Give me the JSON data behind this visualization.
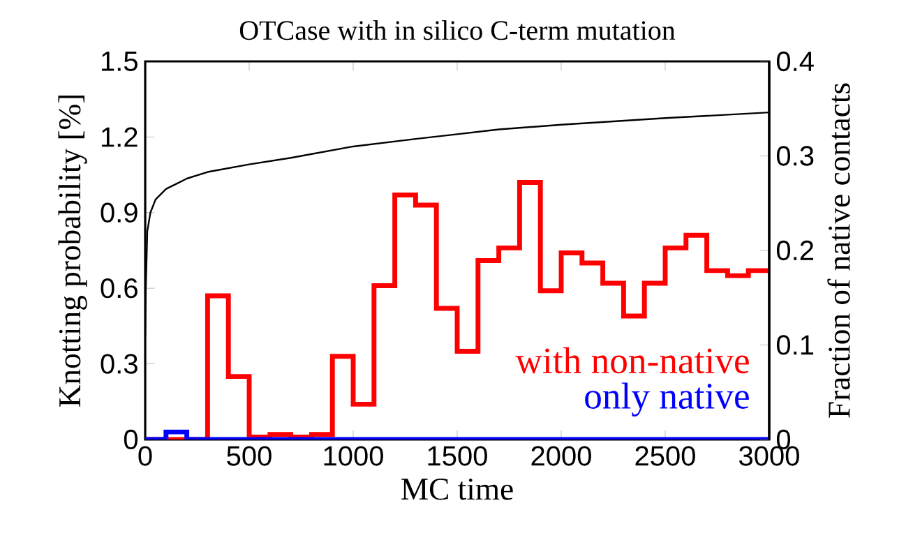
{
  "chart_data": {
    "type": "histogram",
    "title": "OTCase with in silico C-term mutation",
    "xlabel": "MC time",
    "ylabel": "Knotting probability [%]",
    "y2label": "Fraction of native contacts",
    "bins": [
      0,
      100,
      200,
      300,
      400,
      500,
      600,
      700,
      800,
      900,
      1000,
      1100,
      1200,
      1300,
      1400,
      1500,
      1600,
      1700,
      1800,
      1900,
      2000,
      2100,
      2200,
      2300,
      2400,
      2500,
      2600,
      2700,
      2800,
      2900,
      3000
    ],
    "series": [
      {
        "name": "with non-native",
        "color": "#ff0000",
        "values": [
          0,
          0,
          0,
          0.57,
          0.25,
          0.01,
          0.02,
          0.01,
          0.02,
          0.33,
          0.14,
          0.61,
          0.97,
          0.93,
          0.52,
          0.35,
          0.71,
          0.76,
          1.02,
          0.59,
          0.74,
          0.7,
          0.62,
          0.49,
          0.62,
          0.76,
          0.81,
          0.67,
          0.65,
          0.67
        ]
      },
      {
        "name": "only native",
        "color": "#0000ff",
        "values": [
          0,
          0.03,
          0,
          0,
          0,
          0,
          0,
          0,
          0,
          0,
          0,
          0,
          0,
          0,
          0,
          0,
          0,
          0,
          0,
          0,
          0,
          0,
          0,
          0,
          0,
          0,
          0,
          0,
          0,
          0
        ]
      },
      {
        "type": "line",
        "axis": "y2",
        "color": "#000000",
        "x": [
          0,
          3,
          10,
          25,
          50,
          100,
          200,
          300,
          500,
          700,
          1000,
          1300,
          1500,
          1700,
          2000,
          2500,
          3000
        ],
        "values": [
          0.11,
          0.16,
          0.22,
          0.24,
          0.254,
          0.265,
          0.276,
          0.283,
          0.291,
          0.298,
          0.31,
          0.318,
          0.323,
          0.328,
          0.333,
          0.34,
          0.346
        ]
      }
    ],
    "xlim": [
      0,
      3000
    ],
    "xticks": [
      0,
      500,
      1000,
      1500,
      2000,
      2500,
      3000
    ],
    "ylim": [
      0,
      1.5
    ],
    "yticks": [
      0,
      0.3,
      0.6,
      0.9,
      1.2,
      1.5
    ],
    "y2lim": [
      0,
      0.4
    ],
    "y2ticks": [
      0,
      0.1,
      0.2,
      0.3,
      0.4
    ],
    "legend": "bottom right"
  }
}
